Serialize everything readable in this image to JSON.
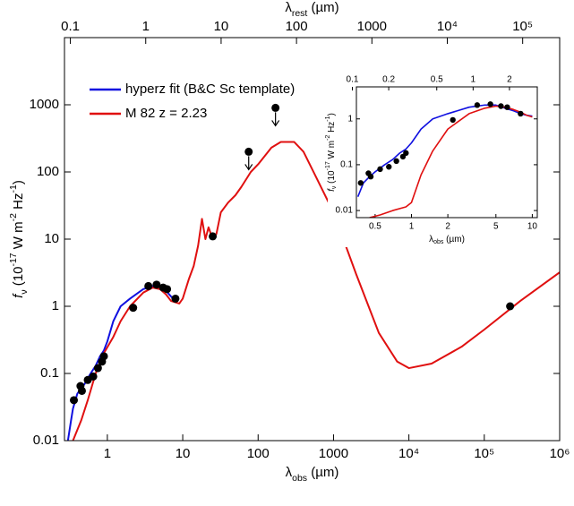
{
  "chart_data": [
    {
      "type": "line",
      "xlog": true,
      "ylog": true,
      "legend": "upper left",
      "xlabel": [
        {
          "text": "λ"
        },
        {
          "text": "obs",
          "shift": "sub"
        },
        {
          "text": " (µm)"
        }
      ],
      "x2label": [
        {
          "text": "λ"
        },
        {
          "text": "rest",
          "shift": "sub"
        },
        {
          "text": " (µm)"
        }
      ],
      "ylabel": [
        {
          "text": "f",
          "italic": true
        },
        {
          "text": "ν",
          "shift": "sub"
        },
        {
          "text": " (10"
        },
        {
          "text": "-17",
          "shift": "sup"
        },
        {
          "text": " W m"
        },
        {
          "text": "-2",
          "shift": "sup"
        },
        {
          "text": " Hz"
        },
        {
          "text": "-1",
          "shift": "sup"
        },
        {
          "text": ")"
        }
      ],
      "xlim": [
        0.27,
        1000000
      ],
      "ylim": [
        0.01,
        10000
      ],
      "x2lim": [
        0.0836,
        309600
      ],
      "xticks": [
        1,
        10,
        100,
        1000,
        {
          "value": 10000,
          "label": "10⁴"
        },
        {
          "value": 100000,
          "label": "10⁵"
        },
        {
          "value": 1000000,
          "label": "10⁶"
        }
      ],
      "x2ticks": [
        0.1,
        1,
        10,
        100,
        1000,
        {
          "value": 10000,
          "label": "10⁴"
        },
        {
          "value": 100000,
          "label": "10⁵"
        }
      ],
      "yticks": [
        0.01,
        0.1,
        1,
        10,
        100,
        1000
      ],
      "series": [
        {
          "name": "hyperz fit (B&C Sc template)",
          "color": "#1010e0",
          "style": "line",
          "x": [
            0.3,
            0.33,
            0.35,
            0.4,
            0.45,
            0.5,
            0.6,
            0.7,
            0.8,
            0.9,
            1.0,
            1.2,
            1.5,
            2,
            3,
            4,
            5,
            6,
            7,
            8
          ],
          "values": [
            0.01,
            0.02,
            0.03,
            0.05,
            0.06,
            0.07,
            0.1,
            0.13,
            0.18,
            0.22,
            0.3,
            0.6,
            1.0,
            1.3,
            1.8,
            2.0,
            2.0,
            1.7,
            1.4,
            1.2
          ]
        },
        {
          "name": "M 82 z = 2.23",
          "color": "#e01010",
          "style": "line",
          "x": [
            0.35,
            0.45,
            0.55,
            0.7,
            0.9,
            1.2,
            1.5,
            2,
            3,
            4,
            5,
            6,
            7,
            9,
            10,
            12,
            14,
            16,
            18,
            20,
            22,
            25,
            28,
            32,
            40,
            50,
            60,
            80,
            100,
            150,
            200,
            300,
            400,
            600,
            1000,
            2000,
            4000,
            7000,
            10000,
            20000,
            50000,
            100000,
            300000,
            1000000
          ],
          "values": [
            0.01,
            0.02,
            0.04,
            0.1,
            0.2,
            0.35,
            0.6,
            1.0,
            1.6,
            1.9,
            1.8,
            1.5,
            1.2,
            1.1,
            1.3,
            2.5,
            4,
            8,
            20,
            10,
            15,
            10,
            12,
            25,
            35,
            45,
            60,
            100,
            130,
            230,
            280,
            280,
            200,
            80,
            25,
            3,
            0.4,
            0.15,
            0.12,
            0.14,
            0.25,
            0.45,
            1.2,
            3.2
          ]
        },
        {
          "color": "#000000",
          "style": "points",
          "x": [
            0.36,
            0.44,
            0.46,
            0.55,
            0.65,
            0.75,
            0.85,
            0.9,
            2.2,
            3.5,
            4.5,
            5.5,
            6.2,
            8,
            25,
            75,
            170,
            220000
          ],
          "values": [
            0.04,
            0.065,
            0.055,
            0.08,
            0.09,
            0.12,
            0.15,
            0.18,
            0.95,
            2.0,
            2.1,
            1.9,
            1.8,
            1.3,
            11,
            200,
            900,
            1.0
          ],
          "upper_limits": [
            false,
            false,
            false,
            false,
            false,
            false,
            false,
            false,
            false,
            false,
            false,
            false,
            false,
            false,
            false,
            true,
            true,
            false
          ]
        }
      ]
    },
    {
      "type": "line",
      "xlog": true,
      "ylog": true,
      "xlabel": [
        {
          "text": "λ"
        },
        {
          "text": "obs",
          "shift": "sub"
        },
        {
          "text": " (µm)"
        }
      ],
      "ylabel": [
        {
          "text": "f",
          "italic": true
        },
        {
          "text": "ν",
          "shift": "sub"
        },
        {
          "text": " (10"
        },
        {
          "text": "-17",
          "shift": "sup"
        },
        {
          "text": " W m"
        },
        {
          "text": "-2",
          "shift": "sup"
        },
        {
          "text": " Hz"
        },
        {
          "text": "-1",
          "shift": "sup"
        },
        {
          "text": ")"
        }
      ],
      "xlim": [
        0.35,
        11
      ],
      "ylim": [
        0.007,
        5
      ],
      "x2lim": [
        0.108,
        3.4
      ],
      "xticks": [
        0.5,
        1,
        2,
        5,
        10
      ],
      "x2ticks": [
        0.1,
        0.2,
        0.5,
        1,
        2
      ],
      "yticks": [
        0.01,
        0.1,
        1
      ],
      "series": [
        {
          "color": "#1010e0",
          "style": "line",
          "x": [
            0.36,
            0.4,
            0.45,
            0.5,
            0.6,
            0.7,
            0.8,
            0.9,
            1.0,
            1.2,
            1.5,
            2,
            3,
            4,
            5,
            6,
            7,
            8,
            9,
            10
          ],
          "values": [
            0.02,
            0.04,
            0.055,
            0.07,
            0.1,
            0.13,
            0.18,
            0.22,
            0.3,
            0.6,
            1.0,
            1.3,
            1.8,
            2.0,
            2.0,
            1.7,
            1.5,
            1.3,
            1.2,
            1.15
          ]
        },
        {
          "color": "#e01010",
          "style": "line",
          "x": [
            0.45,
            0.55,
            0.7,
            0.9,
            1.0,
            1.2,
            1.5,
            2,
            3,
            4,
            5,
            6,
            7,
            8,
            9,
            10
          ],
          "values": [
            0.007,
            0.008,
            0.01,
            0.012,
            0.015,
            0.06,
            0.2,
            0.6,
            1.3,
            1.7,
            1.9,
            1.8,
            1.6,
            1.4,
            1.2,
            1.1
          ]
        },
        {
          "color": "#000000",
          "style": "points",
          "x": [
            0.38,
            0.44,
            0.46,
            0.55,
            0.65,
            0.75,
            0.85,
            0.9,
            2.2,
            3.5,
            4.5,
            5.5,
            6.2,
            8
          ],
          "values": [
            0.04,
            0.065,
            0.055,
            0.08,
            0.09,
            0.12,
            0.15,
            0.18,
            0.95,
            2.0,
            2.1,
            1.9,
            1.8,
            1.3
          ]
        }
      ]
    }
  ]
}
